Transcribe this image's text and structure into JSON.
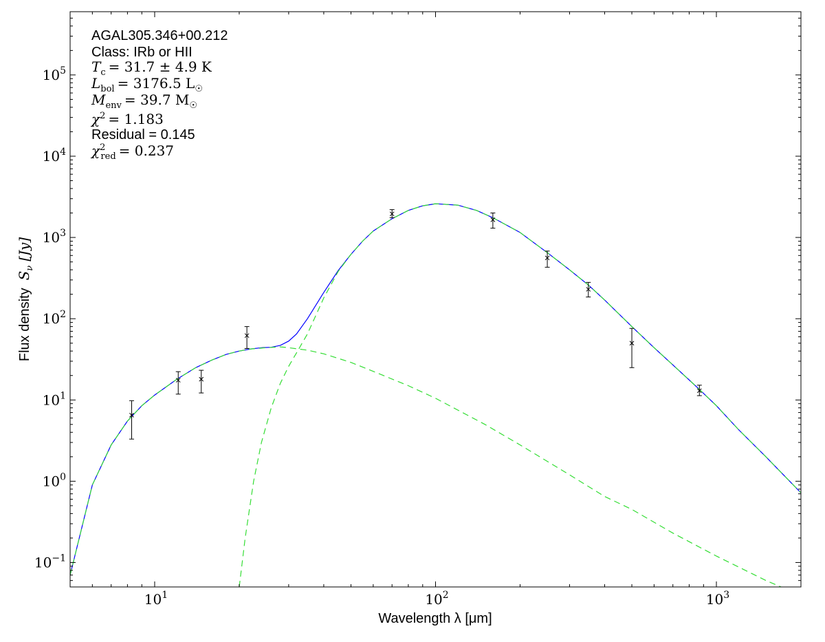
{
  "chart_data": {
    "type": "scatter",
    "x_scale": "log",
    "y_scale": "log",
    "xlim": [
      5,
      2000
    ],
    "ylim": [
      0.05,
      600000
    ],
    "xlabel": "Wavelength λ [μm]",
    "ylabel": "Flux density",
    "ylabel_symbol": "S",
    "ylabel_symbol_sub": "ν",
    "ylabel_unit": "[Jy]",
    "x_ticks": [
      {
        "value": 10,
        "base": "10",
        "exp": "1"
      },
      {
        "value": 100,
        "base": "10",
        "exp": "2"
      },
      {
        "value": 1000,
        "base": "10",
        "exp": "3"
      }
    ],
    "y_ticks": [
      {
        "value": 0.1,
        "base": "10",
        "exp": "−1"
      },
      {
        "value": 1,
        "base": "10",
        "exp": "0"
      },
      {
        "value": 10,
        "base": "10",
        "exp": "1"
      },
      {
        "value": 100,
        "base": "10",
        "exp": "2"
      },
      {
        "value": 1000,
        "base": "10",
        "exp": "3"
      },
      {
        "value": 10000,
        "base": "10",
        "exp": "4"
      },
      {
        "value": 100000,
        "base": "10",
        "exp": "5"
      }
    ],
    "annotations": {
      "source": "AGAL305.346+00.212",
      "class": "Class: IRb or HII",
      "tc_value": "31.7 ± 4.9 K",
      "lbol_value": "3176.5 L",
      "menv_value": "39.7 M",
      "chi2_value": "1.183",
      "residual": "Residual = 0.145",
      "chi2red_value": "0.237"
    },
    "data_points": [
      {
        "x": 8.28,
        "y": 6.5,
        "y_lo": 3.3,
        "y_hi": 9.8
      },
      {
        "x": 12.13,
        "y": 17.5,
        "y_lo": 11.8,
        "y_hi": 22.3
      },
      {
        "x": 14.65,
        "y": 18.0,
        "y_lo": 12.2,
        "y_hi": 23.2
      },
      {
        "x": 21.3,
        "y": 62.0,
        "y_lo": 43.0,
        "y_hi": 80.0
      },
      {
        "x": 70,
        "y": 1950,
        "y_lo": 1750,
        "y_hi": 2200
      },
      {
        "x": 160,
        "y": 1650,
        "y_lo": 1300,
        "y_hi": 2000
      },
      {
        "x": 250,
        "y": 560,
        "y_lo": 430,
        "y_hi": 680
      },
      {
        "x": 350,
        "y": 230,
        "y_lo": 185,
        "y_hi": 280
      },
      {
        "x": 500,
        "y": 50,
        "y_lo": 25,
        "y_hi": 76
      },
      {
        "x": 870,
        "y": 13.0,
        "y_lo": 11.3,
        "y_hi": 15.2
      }
    ],
    "series": [
      {
        "role": "total-fit",
        "color": "#0000ff",
        "style": "solid",
        "points": [
          [
            5.0,
            0.07
          ],
          [
            6.0,
            0.9
          ],
          [
            7.0,
            2.8
          ],
          [
            8.0,
            5.5
          ],
          [
            9.0,
            8.5
          ],
          [
            10.0,
            11.5
          ],
          [
            12.0,
            18.0
          ],
          [
            14.0,
            25.0
          ],
          [
            16.0,
            31.0
          ],
          [
            18.0,
            36.5
          ],
          [
            20.0,
            40.0
          ],
          [
            22.0,
            42.5
          ],
          [
            24.0,
            44.0
          ],
          [
            26.0,
            44.5
          ],
          [
            28.0,
            47.0
          ],
          [
            30.0,
            53.0
          ],
          [
            32.0,
            65.0
          ],
          [
            35.0,
            100.0
          ],
          [
            40.0,
            210.0
          ],
          [
            45.0,
            390.0
          ],
          [
            50.0,
            620.0
          ],
          [
            55.0,
            900.0
          ],
          [
            60.0,
            1200.0
          ],
          [
            70.0,
            1700.0
          ],
          [
            80.0,
            2150.0
          ],
          [
            90.0,
            2450.0
          ],
          [
            100.0,
            2600.0
          ],
          [
            120.0,
            2500.0
          ],
          [
            140.0,
            2150.0
          ],
          [
            160.0,
            1750.0
          ],
          [
            200.0,
            1150.0
          ],
          [
            250.0,
            650.0
          ],
          [
            300.0,
            400.0
          ],
          [
            350.0,
            260.0
          ],
          [
            400.0,
            170.0
          ],
          [
            500.0,
            80.0
          ],
          [
            600.0,
            44.0
          ],
          [
            700.0,
            27.0
          ],
          [
            870.0,
            13.5
          ],
          [
            1000.0,
            8.5
          ],
          [
            1200.0,
            4.3
          ],
          [
            1500.0,
            2.0
          ],
          [
            2000.0,
            0.72
          ]
        ]
      },
      {
        "role": "hot-component",
        "color": "#33dd33",
        "style": "dashed",
        "points": [
          [
            5.0,
            0.07
          ],
          [
            6.0,
            0.9
          ],
          [
            7.0,
            2.8
          ],
          [
            8.0,
            5.5
          ],
          [
            9.0,
            8.5
          ],
          [
            10.0,
            11.5
          ],
          [
            12.0,
            18.0
          ],
          [
            14.0,
            25.0
          ],
          [
            16.0,
            31.0
          ],
          [
            18.0,
            36.5
          ],
          [
            20.0,
            40.0
          ],
          [
            22.0,
            42.5
          ],
          [
            25.0,
            44.0
          ],
          [
            28.0,
            45.0
          ],
          [
            30.0,
            44.0
          ],
          [
            35.0,
            41.0
          ],
          [
            40.0,
            37.0
          ],
          [
            50.0,
            29.0
          ],
          [
            60.0,
            22.5
          ],
          [
            80.0,
            15.0
          ],
          [
            100.0,
            10.5
          ],
          [
            150.0,
            5.0
          ],
          [
            200.0,
            2.8
          ],
          [
            300.0,
            1.2
          ],
          [
            400.0,
            0.65
          ],
          [
            500.0,
            0.45
          ],
          [
            700.0,
            0.23
          ],
          [
            1000.0,
            0.12
          ],
          [
            1500.0,
            0.06
          ],
          [
            1700.0,
            0.05
          ]
        ]
      },
      {
        "role": "cold-component",
        "color": "#33dd33",
        "style": "dashed",
        "points": [
          [
            20.0,
            0.05
          ],
          [
            21.0,
            0.2
          ],
          [
            22.5,
            1.0
          ],
          [
            24.0,
            3.0
          ],
          [
            26.0,
            8.0
          ],
          [
            28.0,
            16.0
          ],
          [
            30.0,
            26.0
          ],
          [
            32.0,
            38.0
          ],
          [
            35.0,
            65.0
          ],
          [
            40.0,
            180.0
          ],
          [
            45.0,
            380.0
          ],
          [
            50.0,
            620.0
          ],
          [
            55.0,
            900.0
          ],
          [
            60.0,
            1200.0
          ],
          [
            70.0,
            1700.0
          ],
          [
            80.0,
            2150.0
          ],
          [
            90.0,
            2450.0
          ],
          [
            100.0,
            2600.0
          ],
          [
            120.0,
            2500.0
          ],
          [
            140.0,
            2150.0
          ],
          [
            160.0,
            1750.0
          ],
          [
            200.0,
            1150.0
          ],
          [
            250.0,
            650.0
          ],
          [
            300.0,
            400.0
          ],
          [
            350.0,
            260.0
          ],
          [
            400.0,
            170.0
          ],
          [
            500.0,
            80.0
          ],
          [
            600.0,
            44.0
          ],
          [
            700.0,
            27.0
          ],
          [
            870.0,
            13.5
          ],
          [
            1000.0,
            8.5
          ],
          [
            1200.0,
            4.3
          ],
          [
            1500.0,
            2.0
          ],
          [
            2000.0,
            0.72
          ]
        ]
      }
    ]
  }
}
